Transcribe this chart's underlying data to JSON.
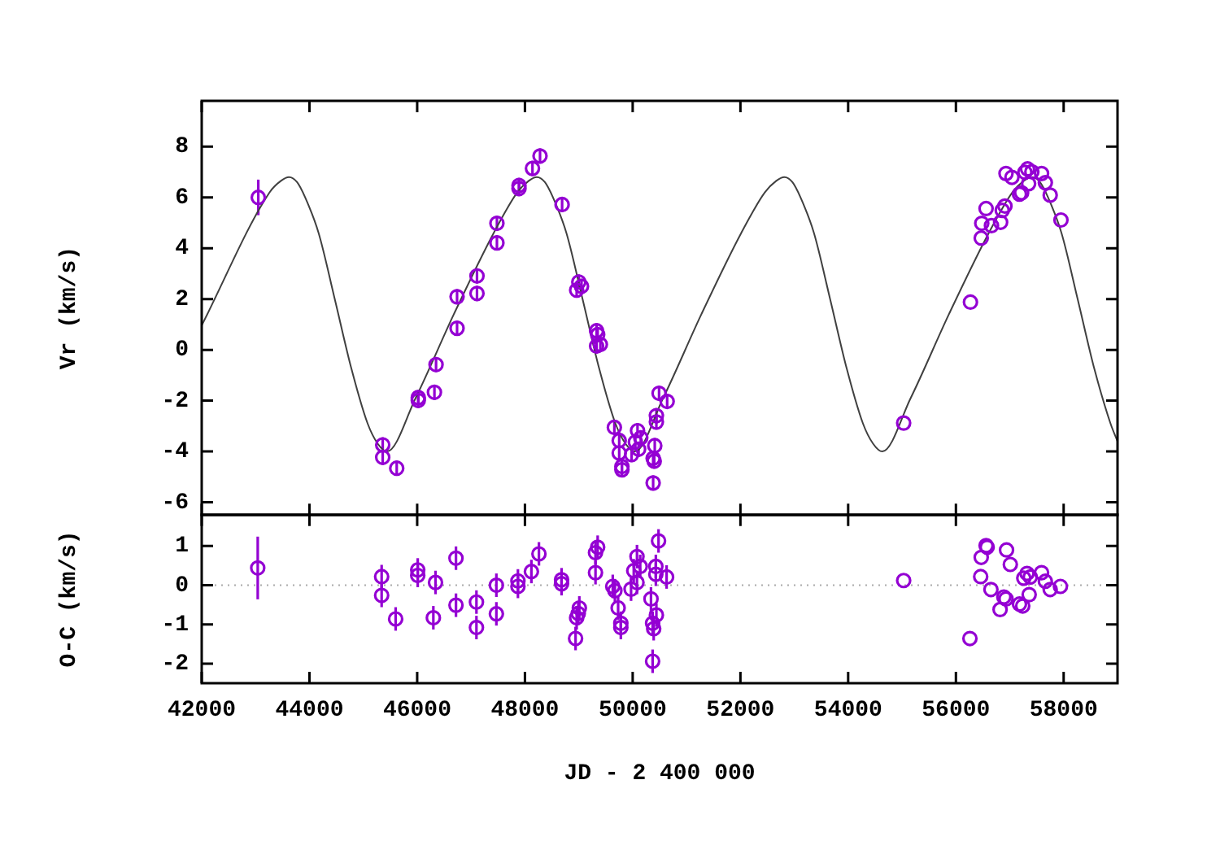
{
  "chart_data": [
    {
      "type": "scatter",
      "ylabel": "Vr (km/s)",
      "xlim": [
        42000,
        59000
      ],
      "xticks": [
        42000,
        44000,
        46000,
        48000,
        50000,
        52000,
        54000,
        56000,
        58000
      ],
      "ylim": [
        -6.5,
        9.8
      ],
      "yticks": [
        -6,
        -4,
        -2,
        0,
        2,
        4,
        6,
        8
      ],
      "tick_labels": "y",
      "grid": false,
      "series": [
        {
          "type": "scatter",
          "marker": "circle",
          "color": "#9400d3",
          "x": [
            43050,
            45360,
            45360,
            45620,
            46020,
            46020,
            46320,
            46350,
            46740,
            46740,
            47110,
            47110,
            47480,
            47480,
            47890,
            47890,
            48140,
            48280,
            48690,
            48960,
            49000,
            49050,
            49330,
            49350,
            49330,
            49400,
            49660,
            49750,
            49750,
            49800,
            49800,
            49980,
            50050,
            50090,
            50150,
            50110,
            50410,
            50380,
            50400,
            50380,
            50440,
            50440,
            50490,
            50640,
            55030,
            56270,
            56470,
            56480,
            56560,
            56660,
            56830,
            56860,
            56910,
            56930,
            57040,
            57180,
            57220,
            57280,
            57330,
            57350,
            57410,
            57590,
            57660,
            57750,
            57950
          ],
          "values": [
            6.0,
            -3.74,
            -4.23,
            -4.66,
            -1.88,
            -1.99,
            -1.67,
            -0.58,
            0.85,
            2.09,
            2.22,
            2.91,
            4.21,
            4.98,
            6.35,
            6.47,
            7.14,
            7.63,
            5.72,
            2.35,
            2.67,
            2.5,
            0.75,
            0.6,
            0.15,
            0.21,
            -3.05,
            -3.57,
            -4.06,
            -4.59,
            -4.72,
            -4.12,
            -3.63,
            -3.18,
            -3.46,
            -3.91,
            -3.77,
            -4.27,
            -4.38,
            -5.24,
            -2.59,
            -2.84,
            -1.71,
            -2.03,
            -2.88,
            1.88,
            4.4,
            4.98,
            5.56,
            4.89,
            5.02,
            5.49,
            5.66,
            6.94,
            6.79,
            6.13,
            6.18,
            6.99,
            7.12,
            6.54,
            7.01,
            6.94,
            6.58,
            6.09,
            5.11
          ],
          "errors": [
            0.7,
            0.3,
            0.3,
            0.3,
            0.3,
            0.3,
            0.3,
            0.3,
            0.3,
            0.3,
            0.3,
            0.3,
            0.3,
            0.3,
            0.3,
            0.3,
            0.3,
            0.3,
            0.3,
            0.3,
            0.3,
            0.3,
            0.3,
            0.3,
            0.3,
            0.3,
            0.3,
            0.3,
            0.3,
            0.3,
            0.3,
            0.3,
            0.3,
            0.3,
            0.3,
            0.3,
            0.3,
            0.3,
            0.3,
            0.3,
            0.3,
            0.3,
            0.3,
            0.3,
            null,
            null,
            null,
            null,
            null,
            null,
            null,
            null,
            null,
            null,
            null,
            null,
            null,
            null,
            null,
            null,
            null,
            null,
            null,
            null,
            null
          ]
        },
        {
          "type": "line",
          "marker": "none",
          "line_style": "solid",
          "color": "#404040",
          "x": [
            42000,
            43260,
            43470,
            43620,
            43770,
            43920,
            44170,
            44470,
            44780,
            45080,
            45270,
            45440,
            45970,
            46680,
            47420,
            47860,
            48070,
            48220,
            48370,
            48520,
            48770,
            49070,
            49380,
            49680,
            49870,
            50040,
            50565,
            51275,
            52015,
            52455,
            52665,
            52815,
            52965,
            53115,
            53365,
            53665,
            53975,
            54275,
            54465,
            54635,
            55160,
            55870,
            56610,
            57050,
            57260,
            57410,
            57560,
            57710,
            57960,
            58260,
            58570,
            58870,
            59000
          ],
          "values": [
            0.96,
            6.2,
            6.65,
            6.8,
            6.6,
            6.0,
            4.6,
            2.0,
            -0.75,
            -2.9,
            -3.7,
            -4.0,
            -1.9,
            1.4,
            4.6,
            6.2,
            6.65,
            6.8,
            6.6,
            6.0,
            4.6,
            2.0,
            -0.75,
            -2.9,
            -3.7,
            -4.0,
            -1.9,
            1.4,
            4.6,
            6.2,
            6.65,
            6.8,
            6.6,
            6.0,
            4.6,
            2.0,
            -0.75,
            -2.9,
            -3.7,
            -4.0,
            -1.9,
            1.4,
            4.6,
            6.2,
            6.65,
            6.8,
            6.6,
            6.0,
            4.6,
            2.0,
            -0.75,
            -2.9,
            -3.6
          ]
        }
      ]
    },
    {
      "type": "scatter",
      "xlabel": "JD - 2 400 000",
      "ylabel": "O-C (km/s)",
      "xlim": [
        42000,
        59000
      ],
      "xticks": [
        42000,
        44000,
        46000,
        48000,
        50000,
        52000,
        54000,
        56000,
        58000
      ],
      "ylim": [
        -2.5,
        1.8
      ],
      "yticks": [
        -2,
        -1,
        0,
        1
      ],
      "grid": false,
      "ref_lines": [
        {
          "axis": "y",
          "value": 0,
          "color": "#aaaaaa",
          "line_style": "dotted"
        }
      ],
      "series": [
        {
          "type": "scatter",
          "marker": "circle",
          "color": "#9400d3",
          "x": [
            43040,
            45340,
            45340,
            45600,
            46010,
            46010,
            46300,
            46340,
            46720,
            46720,
            47100,
            47100,
            47470,
            47470,
            47870,
            47870,
            48120,
            48260,
            48680,
            48680,
            48940,
            48960,
            48990,
            49010,
            49310,
            49310,
            49350,
            49630,
            49670,
            49730,
            49780,
            49780,
            49970,
            50020,
            50080,
            50140,
            50080,
            50340,
            50370,
            50390,
            50370,
            50440,
            50430,
            50430,
            50480,
            50630,
            55030,
            56260,
            56460,
            56470,
            56560,
            56580,
            56650,
            56820,
            56890,
            56930,
            56940,
            57010,
            57180,
            57240,
            57260,
            57320,
            57380,
            57360,
            57590,
            57660,
            57750,
            57940
          ],
          "values": [
            0.44,
            0.22,
            -0.26,
            -0.86,
            0.39,
            0.25,
            -0.83,
            0.07,
            0.69,
            -0.51,
            -0.43,
            -1.08,
            0.0,
            -0.73,
            0.11,
            -0.03,
            0.35,
            0.8,
            0.14,
            0.04,
            -1.36,
            -0.83,
            -0.72,
            -0.58,
            0.32,
            0.83,
            0.97,
            -0.03,
            -0.14,
            -0.58,
            -0.97,
            -1.08,
            -0.1,
            0.37,
            0.73,
            0.48,
            0.07,
            -0.35,
            -0.97,
            -1.11,
            -1.94,
            -0.76,
            0.48,
            0.28,
            1.13,
            0.21,
            0.12,
            -1.36,
            0.22,
            0.71,
            1.01,
            0.97,
            -0.11,
            -0.62,
            -0.3,
            -0.35,
            0.9,
            0.53,
            -0.48,
            -0.53,
            0.18,
            0.3,
            0.21,
            -0.24,
            0.32,
            0.1,
            -0.11,
            -0.03
          ],
          "errors": [
            0.8,
            0.3,
            0.3,
            0.3,
            0.3,
            0.3,
            0.3,
            0.3,
            0.3,
            0.3,
            0.3,
            0.3,
            0.3,
            0.3,
            0.3,
            0.3,
            0.3,
            0.3,
            0.3,
            0.3,
            0.3,
            0.3,
            0.3,
            0.3,
            0.3,
            0.3,
            0.3,
            0.3,
            0.3,
            0.3,
            0.3,
            0.3,
            0.3,
            0.3,
            0.3,
            0.3,
            0.3,
            0.3,
            0.3,
            0.3,
            0.3,
            0.3,
            0.3,
            0.3,
            0.3,
            0.3,
            null,
            null,
            null,
            null,
            null,
            null,
            null,
            null,
            null,
            null,
            null,
            null,
            null,
            null,
            null,
            null,
            null,
            null,
            null,
            null,
            null,
            null
          ]
        }
      ]
    }
  ]
}
